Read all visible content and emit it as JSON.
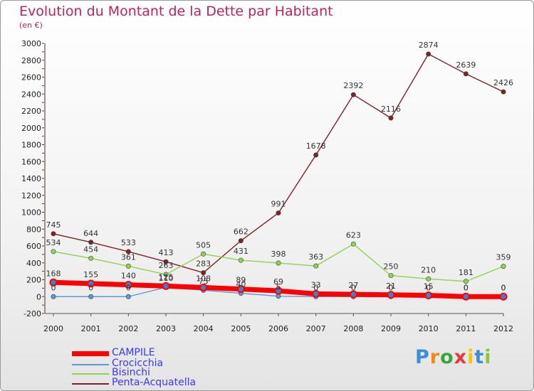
{
  "chart_data": {
    "type": "line",
    "title": "Evolution du Montant de la Dette par Habitant",
    "subtitle": "(en €)",
    "x": [
      "2000",
      "2001",
      "2002",
      "2003",
      "2004",
      "2005",
      "2006",
      "2007",
      "2008",
      "2009",
      "2010",
      "2011",
      "2012"
    ],
    "ylim": [
      -200,
      3000
    ],
    "yticks": [
      -200,
      0,
      200,
      400,
      600,
      800,
      1000,
      1200,
      1400,
      1600,
      1800,
      2000,
      2200,
      2400,
      2600,
      2800,
      3000
    ],
    "grid": false,
    "legend_position": "bottom-left",
    "series": [
      {
        "name": "CAMPILE",
        "color": "#ff0000",
        "width": 7,
        "values": [
          168,
          155,
          140,
          125,
          108,
          89,
          69,
          33,
          27,
          21,
          15,
          0,
          0
        ],
        "labels": [
          "168",
          "155",
          "140",
          "125",
          "108",
          "89",
          "69",
          "33",
          "27",
          "21",
          "15",
          "0",
          "0"
        ]
      },
      {
        "name": "Crocicchia",
        "color": "#5b9bd5",
        "width": 1.4,
        "values": [
          0,
          0,
          0,
          110,
          75,
          40,
          5,
          0,
          0,
          0,
          0,
          0,
          0
        ],
        "labels": [
          "0",
          "0",
          "0",
          "110",
          "75",
          "40",
          "5",
          "0",
          "0",
          "0",
          "0",
          "0",
          "0"
        ]
      },
      {
        "name": "Bisinchi",
        "color": "#92d050",
        "width": 1.4,
        "values": [
          534,
          454,
          361,
          263,
          505,
          431,
          398,
          363,
          623,
          250,
          210,
          181,
          359
        ],
        "labels": [
          "534",
          "454",
          "361",
          "263",
          "505",
          "431",
          "398",
          "363",
          "623",
          "250",
          "210",
          "181",
          "359"
        ]
      },
      {
        "name": "Penta-Acquatella",
        "color": "#7b2326",
        "width": 1.4,
        "values": [
          745,
          644,
          533,
          413,
          283,
          662,
          991,
          1678,
          2392,
          2116,
          2874,
          2639,
          2426
        ],
        "labels": [
          "745",
          "644",
          "533",
          "413",
          "283",
          "662",
          "991",
          "1678",
          "2392",
          "2116",
          "2874",
          "2639",
          "2426"
        ]
      }
    ]
  },
  "logo": {
    "letters": [
      "P",
      "r",
      "o",
      "x",
      "i",
      "t",
      "i"
    ],
    "colors": [
      "#3a8edb",
      "#f08a1c",
      "#3aa53a",
      "#e8383d",
      "#f0c419",
      "#3a8edb",
      "#8cc63f"
    ]
  }
}
